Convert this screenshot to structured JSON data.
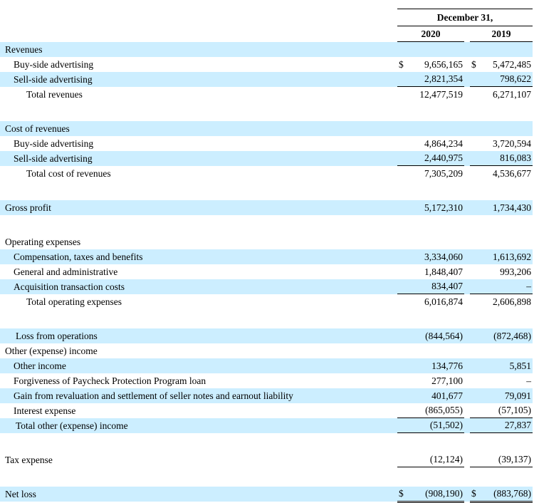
{
  "currency_symbol": "$",
  "header": {
    "period": "December 31,",
    "years": [
      "2020",
      "2019"
    ]
  },
  "rows": [
    {
      "label": "Revenues",
      "bg": "blue",
      "indent": 0,
      "v2020": "",
      "v2019": ""
    },
    {
      "label": "Buy-side advertising",
      "bg": "white",
      "indent": 1,
      "cur": true,
      "v2020": "9,656,165",
      "v2019": "5,472,485"
    },
    {
      "label": "Sell-side advertising",
      "bg": "blue",
      "indent": 1,
      "v2020": "2,821,354",
      "v2019": "798,622",
      "rule": "single"
    },
    {
      "label": "Total revenues",
      "bg": "white",
      "indent": 3,
      "v2020": "12,477,519",
      "v2019": "6,271,107"
    },
    {
      "spacer": true
    },
    {
      "label": "Cost of revenues",
      "bg": "blue",
      "indent": 0,
      "v2020": "",
      "v2019": ""
    },
    {
      "label": "Buy-side advertising",
      "bg": "white",
      "indent": 1,
      "v2020": "4,864,234",
      "v2019": "3,720,594"
    },
    {
      "label": "Sell-side advertising",
      "bg": "blue",
      "indent": 1,
      "v2020": "2,440,975",
      "v2019": "816,083",
      "rule": "single"
    },
    {
      "label": "Total cost of revenues",
      "bg": "white",
      "indent": 3,
      "v2020": "7,305,209",
      "v2019": "4,536,677"
    },
    {
      "spacer": true
    },
    {
      "label": "Gross profit",
      "bg": "blue",
      "indent": 0,
      "v2020": "5,172,310",
      "v2019": "1,734,430"
    },
    {
      "spacer": true
    },
    {
      "label": "Operating expenses",
      "bg": "white",
      "indent": 0,
      "v2020": "",
      "v2019": ""
    },
    {
      "label": "Compensation, taxes and benefits",
      "bg": "blue",
      "indent": 1,
      "v2020": "3,334,060",
      "v2019": "1,613,692"
    },
    {
      "label": "General and administrative",
      "bg": "white",
      "indent": 1,
      "v2020": "1,848,407",
      "v2019": "993,206"
    },
    {
      "label": "Acquisition transaction costs",
      "bg": "blue",
      "indent": 1,
      "v2020": "834,407",
      "v2019": "–",
      "rule": "single"
    },
    {
      "label": "Total operating expenses",
      "bg": "white",
      "indent": 3,
      "v2020": "6,016,874",
      "v2019": "2,606,898"
    },
    {
      "spacer": true
    },
    {
      "label": "Loss from operations",
      "bg": "blue",
      "indent": 2,
      "v2020": "(844,564)",
      "v2019": "(872,468)"
    },
    {
      "label": "Other (expense) income",
      "bg": "white",
      "indent": 0,
      "v2020": "",
      "v2019": ""
    },
    {
      "label": "Other income",
      "bg": "blue",
      "indent": 1,
      "v2020": "134,776",
      "v2019": "5,851"
    },
    {
      "label": "Forgiveness of Paycheck Protection Program loan",
      "bg": "white",
      "indent": 1,
      "v2020": "277,100",
      "v2019": "–"
    },
    {
      "label": "Gain from revaluation and settlement of seller notes and earnout liability",
      "bg": "blue",
      "indent": 1,
      "v2020": "401,677",
      "v2019": "79,091"
    },
    {
      "label": "Interest expense",
      "bg": "white",
      "indent": 1,
      "v2020": "(865,055)",
      "v2019": "(57,105)",
      "rule": "single"
    },
    {
      "label": "Total other (expense) income",
      "bg": "blue",
      "indent": 2,
      "v2020": "(51,502)",
      "v2019": "27,837",
      "rule": "single"
    },
    {
      "spacer": true
    },
    {
      "label": "Tax expense",
      "bg": "white",
      "indent": 0,
      "v2020": "(12,124)",
      "v2019": "(39,137)",
      "rule": "single"
    },
    {
      "spacer": true
    },
    {
      "label": "Net loss",
      "bg": "blue",
      "indent": 0,
      "cur": true,
      "v2020": "(908,190)",
      "v2019": "(883,768)",
      "rule": "double"
    }
  ]
}
